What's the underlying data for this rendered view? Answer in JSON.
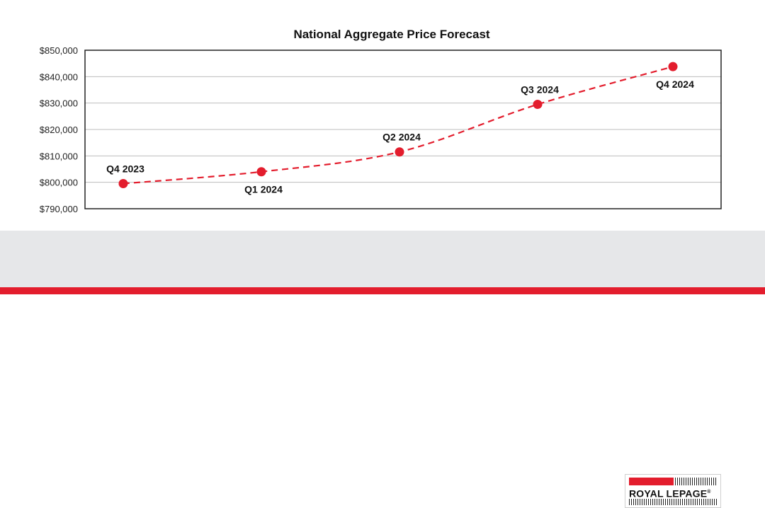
{
  "chart_data": {
    "type": "line",
    "title": "National Aggregate Price Forecast",
    "xlabel": "",
    "ylabel": "",
    "ylim": [
      790000,
      850000
    ],
    "y_ticks": [
      "$850,000",
      "$840,000",
      "$830,000",
      "$820,000",
      "$810,000",
      "$800,000",
      "$790,000"
    ],
    "y_tick_values": [
      850000,
      840000,
      830000,
      820000,
      810000,
      800000,
      790000
    ],
    "categories": [
      "Q4 2023",
      "Q1 2024",
      "Q2 2024",
      "Q3 2024",
      "Q4 2024"
    ],
    "series": [
      {
        "values": [
          799500,
          804000,
          811500,
          829500,
          843800
        ]
      }
    ],
    "point_label_placement": [
      "above",
      "below",
      "above",
      "above",
      "below"
    ],
    "grid": true,
    "line_style": "dashed",
    "color": "#e31d2d"
  },
  "footer": {
    "logo_text": "ROYAL LEPAGE",
    "logo_registered": "®"
  }
}
